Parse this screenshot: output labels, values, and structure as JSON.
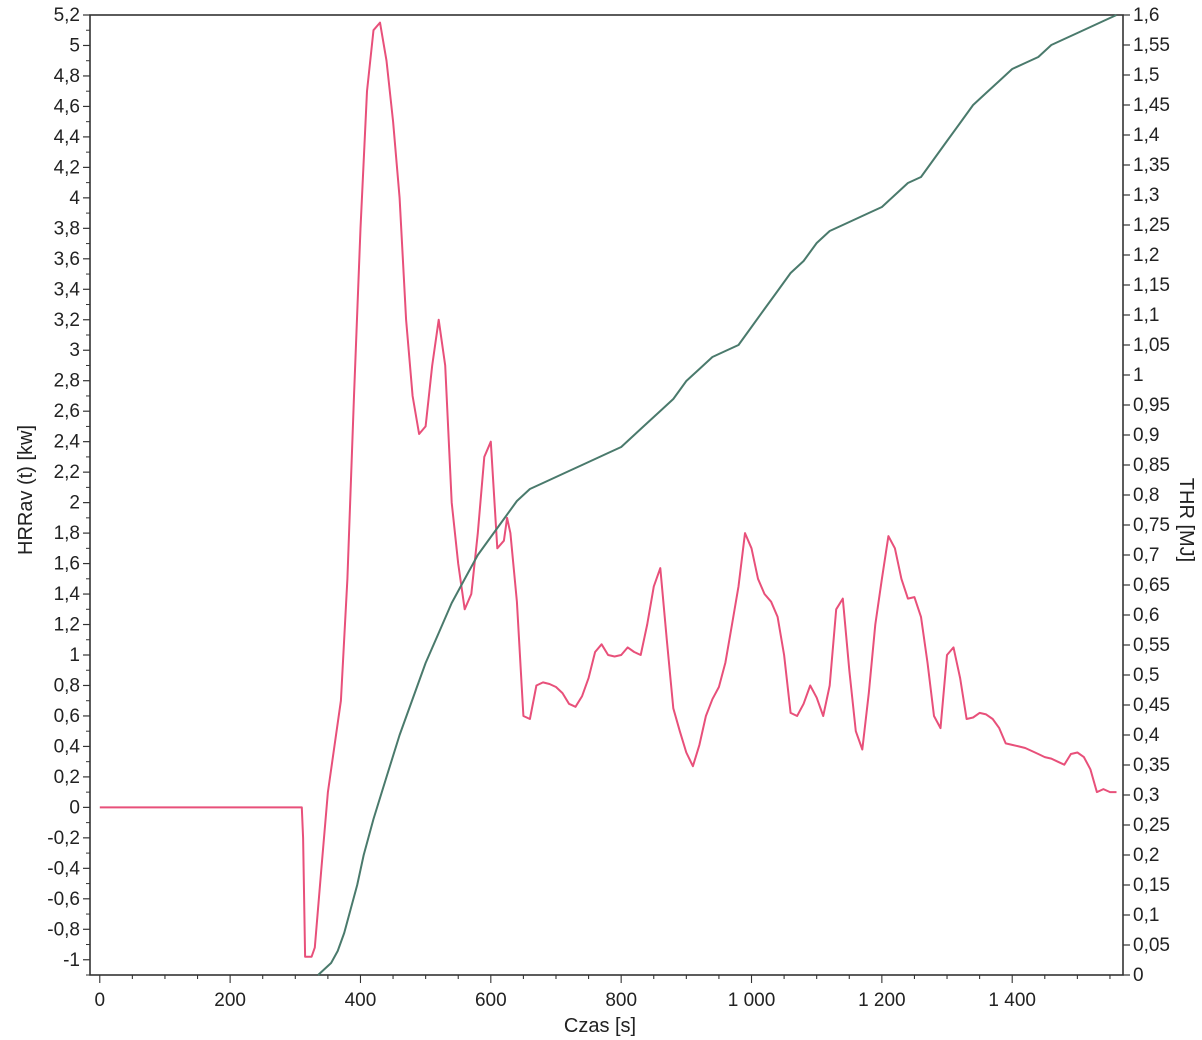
{
  "chart_data": {
    "type": "line",
    "xlabel": "Czas [s]",
    "ylabel_left": "HRRav (t) [kw]",
    "ylabel_right": "THR [MJ]",
    "xlim": [
      -15,
      1570
    ],
    "ylim_left": [
      -1.1,
      5.2
    ],
    "ylim_right": [
      0,
      1.6
    ],
    "x_ticks": [
      0,
      200,
      400,
      600,
      800,
      1000,
      1200,
      1400
    ],
    "x_tick_labels": [
      "0",
      "200",
      "400",
      "600",
      "800",
      "1 000",
      "1 200",
      "1 400"
    ],
    "y_left_ticks": [
      5.2,
      5,
      4.8,
      4.6,
      4.4,
      4.2,
      4,
      3.8,
      3.6,
      3.4,
      3.2,
      3,
      2.8,
      2.6,
      2.4,
      2.2,
      2,
      1.8,
      1.6,
      1.4,
      1.2,
      1,
      0.8,
      0.6,
      0.4,
      0.2,
      0,
      -0.2,
      -0.4,
      -0.6,
      -0.8,
      -1
    ],
    "y_left_tick_labels": [
      "5,2",
      "5",
      "4,8",
      "4,6",
      "4,4",
      "4,2",
      "4",
      "3,8",
      "3,6",
      "3,4",
      "3,2",
      "3",
      "2,8",
      "2,6",
      "2,4",
      "2,2",
      "2",
      "1,8",
      "1,6",
      "1,4",
      "1,2",
      "1",
      "0,8",
      "0,6",
      "0,4",
      "0,2",
      "0",
      "-0,2",
      "-0,4",
      "-0,6",
      "-0,8",
      "-1"
    ],
    "y_right_ticks": [
      1.6,
      1.55,
      1.5,
      1.45,
      1.4,
      1.35,
      1.3,
      1.25,
      1.2,
      1.15,
      1.1,
      1.05,
      1,
      0.95,
      0.9,
      0.85,
      0.8,
      0.75,
      0.7,
      0.65,
      0.6,
      0.55,
      0.5,
      0.45,
      0.4,
      0.35,
      0.3,
      0.25,
      0.2,
      0.15,
      0.1,
      0.05,
      0
    ],
    "y_right_tick_labels": [
      "1,6",
      "1,55",
      "1,5",
      "1,45",
      "1,4",
      "1,35",
      "1,3",
      "1,25",
      "1,2",
      "1,15",
      "1,1",
      "1,05",
      "1",
      "0,95",
      "0,9",
      "0,85",
      "0,8",
      "0,75",
      "0,7",
      "0,65",
      "0,6",
      "0,55",
      "0,5",
      "0,45",
      "0,4",
      "0,35",
      "0,3",
      "0,25",
      "0,2",
      "0,15",
      "0,1",
      "0,05",
      "0"
    ],
    "grid": false,
    "colors": {
      "hrr": "#e8507a",
      "thr": "#4a7a6c",
      "axis": "#333333"
    },
    "series": [
      {
        "axis": "left",
        "color": "#e8507a",
        "x": [
          0,
          310,
          312,
          315,
          320,
          325,
          330,
          340,
          350,
          360,
          370,
          380,
          390,
          400,
          410,
          420,
          430,
          440,
          450,
          460,
          470,
          480,
          490,
          500,
          510,
          520,
          530,
          540,
          550,
          560,
          570,
          580,
          590,
          600,
          610,
          620,
          625,
          630,
          640,
          650,
          660,
          670,
          680,
          690,
          700,
          710,
          720,
          730,
          740,
          750,
          760,
          770,
          780,
          790,
          800,
          810,
          820,
          830,
          840,
          850,
          860,
          870,
          880,
          890,
          900,
          910,
          920,
          930,
          940,
          950,
          960,
          970,
          980,
          990,
          1000,
          1010,
          1020,
          1030,
          1040,
          1050,
          1060,
          1070,
          1080,
          1090,
          1100,
          1110,
          1120,
          1130,
          1140,
          1150,
          1160,
          1170,
          1180,
          1190,
          1200,
          1210,
          1220,
          1230,
          1240,
          1250,
          1260,
          1270,
          1280,
          1290,
          1300,
          1310,
          1320,
          1330,
          1340,
          1350,
          1360,
          1370,
          1380,
          1390,
          1400,
          1410,
          1420,
          1430,
          1440,
          1450,
          1460,
          1470,
          1480,
          1490,
          1500,
          1510,
          1520,
          1530,
          1540,
          1550,
          1560
        ],
        "values": [
          0,
          0,
          -0.2,
          -0.98,
          -0.98,
          -0.98,
          -0.92,
          -0.4,
          0.1,
          0.4,
          0.7,
          1.5,
          2.7,
          3.8,
          4.7,
          5.1,
          5.15,
          4.9,
          4.5,
          4.0,
          3.2,
          2.7,
          2.45,
          2.5,
          2.9,
          3.2,
          2.9,
          2.0,
          1.6,
          1.3,
          1.4,
          1.8,
          2.3,
          2.4,
          1.7,
          1.75,
          1.9,
          1.8,
          1.35,
          0.6,
          0.58,
          0.8,
          0.82,
          0.81,
          0.79,
          0.75,
          0.68,
          0.66,
          0.73,
          0.85,
          1.02,
          1.07,
          1.0,
          0.99,
          1.0,
          1.05,
          1.02,
          1.0,
          1.2,
          1.45,
          1.57,
          1.1,
          0.65,
          0.5,
          0.36,
          0.27,
          0.41,
          0.6,
          0.71,
          0.79,
          0.95,
          1.2,
          1.45,
          1.8,
          1.7,
          1.5,
          1.4,
          1.35,
          1.25,
          1.0,
          0.62,
          0.6,
          0.68,
          0.8,
          0.72,
          0.6,
          0.8,
          1.3,
          1.37,
          0.9,
          0.5,
          0.38,
          0.75,
          1.2,
          1.5,
          1.78,
          1.7,
          1.5,
          1.37,
          1.38,
          1.25,
          0.95,
          0.6,
          0.52,
          1.0,
          1.05,
          0.85,
          0.58,
          0.59,
          0.62,
          0.61,
          0.58,
          0.52,
          0.42,
          0.41,
          0.4,
          0.39,
          0.37,
          0.35,
          0.33,
          0.32,
          0.3,
          0.28,
          0.35,
          0.36,
          0.33,
          0.25,
          0.1,
          0.12,
          0.1,
          0.1
        ],
        "note": ""
      },
      {
        "axis": "right",
        "color": "#4a7a6c",
        "x": [
          335,
          345,
          355,
          365,
          375,
          385,
          395,
          405,
          420,
          440,
          460,
          480,
          500,
          520,
          540,
          560,
          580,
          600,
          620,
          640,
          660,
          680,
          700,
          720,
          740,
          760,
          780,
          800,
          820,
          840,
          860,
          880,
          900,
          920,
          940,
          960,
          980,
          1000,
          1020,
          1040,
          1060,
          1080,
          1100,
          1120,
          1140,
          1160,
          1180,
          1200,
          1220,
          1240,
          1260,
          1280,
          1300,
          1320,
          1340,
          1360,
          1380,
          1400,
          1420,
          1440,
          1460,
          1480,
          1500,
          1520,
          1540,
          1560
        ],
        "values": [
          0.0,
          0.01,
          0.02,
          0.04,
          0.07,
          0.11,
          0.15,
          0.2,
          0.26,
          0.33,
          0.4,
          0.46,
          0.52,
          0.57,
          0.62,
          0.66,
          0.7,
          0.73,
          0.76,
          0.79,
          0.81,
          0.82,
          0.83,
          0.84,
          0.85,
          0.86,
          0.87,
          0.88,
          0.9,
          0.92,
          0.94,
          0.96,
          0.99,
          1.01,
          1.03,
          1.04,
          1.05,
          1.08,
          1.11,
          1.14,
          1.17,
          1.19,
          1.22,
          1.24,
          1.25,
          1.26,
          1.27,
          1.28,
          1.3,
          1.32,
          1.33,
          1.36,
          1.39,
          1.42,
          1.45,
          1.47,
          1.49,
          1.51,
          1.52,
          1.53,
          1.55,
          1.56,
          1.57,
          1.58,
          1.59,
          1.6
        ]
      }
    ]
  }
}
